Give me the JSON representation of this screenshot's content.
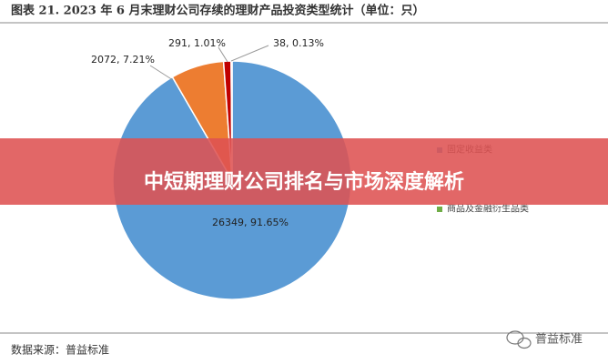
{
  "chart_data": {
    "type": "pie",
    "title": "图表 21. 2023 年 6 月末理财公司存续的理财产品投资类型统计（单位：只）",
    "categories": [
      "固定收益类",
      null,
      null,
      "商品及金融衍生品类"
    ],
    "values": [
      26349,
      2072,
      291,
      38
    ],
    "value_labels": [
      "26349, 91.65%",
      "2072, 7.21%",
      "291, 1.01%",
      "38, 0.13%"
    ],
    "colors": [
      "#5b9bd5",
      "#ed7d31",
      "#c00000",
      "#70ad47"
    ]
  },
  "source": "数据来源：普益标准",
  "banner": "中短期理财公司排名与市场深度解析",
  "watermark": "普益标准"
}
